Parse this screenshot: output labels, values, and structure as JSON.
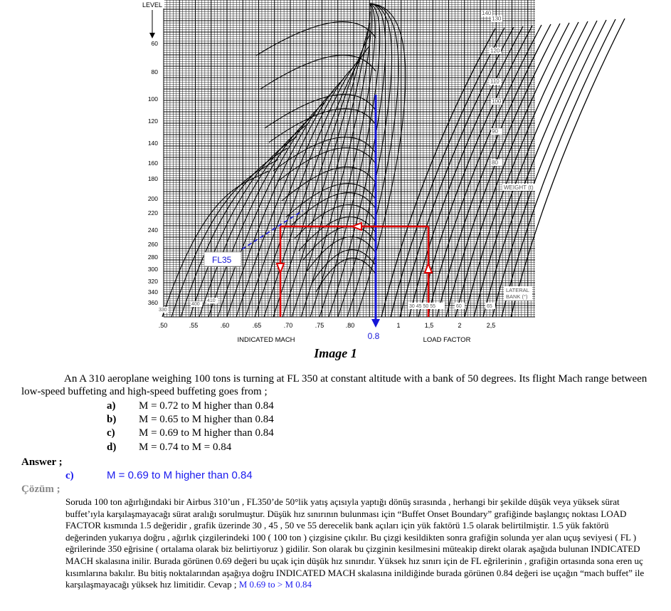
{
  "chart": {
    "level_label": "LEVEL",
    "fl_ticks": [
      "60",
      "80",
      "100",
      "120",
      "140",
      "160",
      "180",
      "200",
      "220",
      "240",
      "260",
      "280",
      "300",
      "320",
      "340",
      "360"
    ],
    "mach_ticks": [
      ".50",
      ".55",
      ".60",
      ".65",
      ".70",
      ".75",
      ".80"
    ],
    "load_ticks": [
      "1",
      "1,5",
      "2",
      "2,5"
    ],
    "mach_axis_label": "INDICATED MACH",
    "load_axis_label": "LOAD FACTOR",
    "weight_label": "WEIGHT (t)",
    "weight_ticks": [
      "140",
      "130",
      "120",
      "110",
      "100",
      "90",
      "80"
    ],
    "bank_label_1": "LATERAL",
    "bank_label_2": "BANK (°)",
    "bank_ticks": "30 45 50 55",
    "bank_tick_60": "60",
    "bank_tick_65": "65",
    "weight_330": "330",
    "weight_400": "400",
    "weight_410": "410",
    "fl35_label": "FL35",
    "mach_08_label": "0.8",
    "colors": {
      "grid": "#000000",
      "red": "#e00000",
      "blue": "#1515d8"
    }
  },
  "caption": "Image 1",
  "question": "An A 310 aeroplane weighing 100 tons is turning at FL 350 at constant altitude with a bank of 50 degrees. Its flight Mach range between low-speed buffeting and high-speed buffeting goes from ;",
  "options": [
    {
      "key": "a)",
      "text": "M = 0.72 to M higher than 0.84"
    },
    {
      "key": "b)",
      "text": "M = 0.65 to M higher than 0.84"
    },
    {
      "key": "c)",
      "text": "M = 0.69 to M higher than 0.84"
    },
    {
      "key": "d)",
      "text": "M = 0.74 to M = 0.84"
    }
  ],
  "answer_label": "Answer ;",
  "answer_key": "c)",
  "answer_text": "M = 0.69 to M higher than 0.84",
  "solution_label": "Çözüm ;",
  "solution_text": "Soruda 100 ton ağırlığındaki bir Airbus 310’un , FL350’de 50°lik yatış açısıyla yaptığı dönüş sırasında , herhangi bir şekilde düşük veya yüksek sürat buffet’ıyla karşılaşmayacağı sürat aralığı sorulmuştur. Düşük hız sınırının bulunması için “Buffet Onset Boundary” grafiğinde başlangıç noktası LOAD FACTOR kısmında 1.5 değeridir , grafik üzerinde 30 , 45 , 50 ve 55 derecelik bank açıları için yük faktörü 1.5 olarak belirtilmiştir. 1.5 yük faktörü değerinden yukarıya doğru , ağırlık çizgilerindeki 100 ( 100 ton ) çizgisine çıkılır. Bu çizgi kesildikten sonra grafiğin solunda yer alan uçuş seviyesi ( FL ) eğrilerinde 350 eğrisine ( ortalama olarak biz belirtiyoruz ) gidilir. Son olarak bu çizginin kesilmesini müteakip direkt olarak aşağıda bulunan INDICATED MACH skalasına inilir. Burada görünen 0.69 değeri bu uçak için düşük hız sınırıdır. Yüksek hız sınırı için de FL eğrilerinin , grafiğin ortasında sona eren uç kısımlarına bakılır. Bu bitiş noktalarından aşağıya doğru INDICATED MACH skalasına inildiğinde burada görünen 0.84 değeri ise uçağın “mach buffet” ile karşılaşmayacağı yüksek hız limitidir. Cevap ;",
  "solution_answer": "M 0.69 to > M 0.84"
}
